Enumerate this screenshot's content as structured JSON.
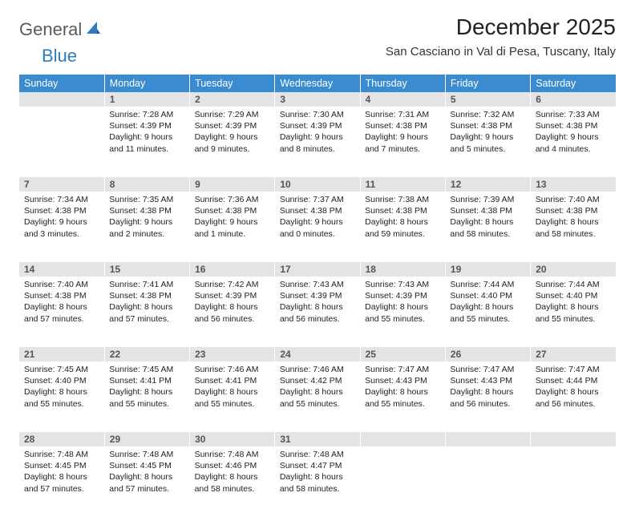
{
  "brand": {
    "general": "General",
    "blue": "Blue"
  },
  "title": "December 2025",
  "location": "San Casciano in Val di Pesa, Tuscany, Italy",
  "colors": {
    "header_bg": "#3a8bcf",
    "header_text": "#ffffff",
    "daynum_bg": "#e4e4e4",
    "daynum_text": "#555555",
    "body_text": "#222222",
    "brand_gray": "#5a5a5a",
    "brand_blue": "#2f7bbf",
    "page_bg": "#ffffff"
  },
  "typography": {
    "title_fontsize": 28,
    "location_fontsize": 15,
    "weekday_fontsize": 12.5,
    "daynum_fontsize": 12,
    "cell_fontsize": 10.5
  },
  "weekdays": [
    "Sunday",
    "Monday",
    "Tuesday",
    "Wednesday",
    "Thursday",
    "Friday",
    "Saturday"
  ],
  "weeks": [
    [
      {
        "n": "",
        "lines": []
      },
      {
        "n": "1",
        "lines": [
          "Sunrise: 7:28 AM",
          "Sunset: 4:39 PM",
          "Daylight: 9 hours",
          "and 11 minutes."
        ]
      },
      {
        "n": "2",
        "lines": [
          "Sunrise: 7:29 AM",
          "Sunset: 4:39 PM",
          "Daylight: 9 hours",
          "and 9 minutes."
        ]
      },
      {
        "n": "3",
        "lines": [
          "Sunrise: 7:30 AM",
          "Sunset: 4:39 PM",
          "Daylight: 9 hours",
          "and 8 minutes."
        ]
      },
      {
        "n": "4",
        "lines": [
          "Sunrise: 7:31 AM",
          "Sunset: 4:38 PM",
          "Daylight: 9 hours",
          "and 7 minutes."
        ]
      },
      {
        "n": "5",
        "lines": [
          "Sunrise: 7:32 AM",
          "Sunset: 4:38 PM",
          "Daylight: 9 hours",
          "and 5 minutes."
        ]
      },
      {
        "n": "6",
        "lines": [
          "Sunrise: 7:33 AM",
          "Sunset: 4:38 PM",
          "Daylight: 9 hours",
          "and 4 minutes."
        ]
      }
    ],
    [
      {
        "n": "7",
        "lines": [
          "Sunrise: 7:34 AM",
          "Sunset: 4:38 PM",
          "Daylight: 9 hours",
          "and 3 minutes."
        ]
      },
      {
        "n": "8",
        "lines": [
          "Sunrise: 7:35 AM",
          "Sunset: 4:38 PM",
          "Daylight: 9 hours",
          "and 2 minutes."
        ]
      },
      {
        "n": "9",
        "lines": [
          "Sunrise: 7:36 AM",
          "Sunset: 4:38 PM",
          "Daylight: 9 hours",
          "and 1 minute."
        ]
      },
      {
        "n": "10",
        "lines": [
          "Sunrise: 7:37 AM",
          "Sunset: 4:38 PM",
          "Daylight: 9 hours",
          "and 0 minutes."
        ]
      },
      {
        "n": "11",
        "lines": [
          "Sunrise: 7:38 AM",
          "Sunset: 4:38 PM",
          "Daylight: 8 hours",
          "and 59 minutes."
        ]
      },
      {
        "n": "12",
        "lines": [
          "Sunrise: 7:39 AM",
          "Sunset: 4:38 PM",
          "Daylight: 8 hours",
          "and 58 minutes."
        ]
      },
      {
        "n": "13",
        "lines": [
          "Sunrise: 7:40 AM",
          "Sunset: 4:38 PM",
          "Daylight: 8 hours",
          "and 58 minutes."
        ]
      }
    ],
    [
      {
        "n": "14",
        "lines": [
          "Sunrise: 7:40 AM",
          "Sunset: 4:38 PM",
          "Daylight: 8 hours",
          "and 57 minutes."
        ]
      },
      {
        "n": "15",
        "lines": [
          "Sunrise: 7:41 AM",
          "Sunset: 4:38 PM",
          "Daylight: 8 hours",
          "and 57 minutes."
        ]
      },
      {
        "n": "16",
        "lines": [
          "Sunrise: 7:42 AM",
          "Sunset: 4:39 PM",
          "Daylight: 8 hours",
          "and 56 minutes."
        ]
      },
      {
        "n": "17",
        "lines": [
          "Sunrise: 7:43 AM",
          "Sunset: 4:39 PM",
          "Daylight: 8 hours",
          "and 56 minutes."
        ]
      },
      {
        "n": "18",
        "lines": [
          "Sunrise: 7:43 AM",
          "Sunset: 4:39 PM",
          "Daylight: 8 hours",
          "and 55 minutes."
        ]
      },
      {
        "n": "19",
        "lines": [
          "Sunrise: 7:44 AM",
          "Sunset: 4:40 PM",
          "Daylight: 8 hours",
          "and 55 minutes."
        ]
      },
      {
        "n": "20",
        "lines": [
          "Sunrise: 7:44 AM",
          "Sunset: 4:40 PM",
          "Daylight: 8 hours",
          "and 55 minutes."
        ]
      }
    ],
    [
      {
        "n": "21",
        "lines": [
          "Sunrise: 7:45 AM",
          "Sunset: 4:40 PM",
          "Daylight: 8 hours",
          "and 55 minutes."
        ]
      },
      {
        "n": "22",
        "lines": [
          "Sunrise: 7:45 AM",
          "Sunset: 4:41 PM",
          "Daylight: 8 hours",
          "and 55 minutes."
        ]
      },
      {
        "n": "23",
        "lines": [
          "Sunrise: 7:46 AM",
          "Sunset: 4:41 PM",
          "Daylight: 8 hours",
          "and 55 minutes."
        ]
      },
      {
        "n": "24",
        "lines": [
          "Sunrise: 7:46 AM",
          "Sunset: 4:42 PM",
          "Daylight: 8 hours",
          "and 55 minutes."
        ]
      },
      {
        "n": "25",
        "lines": [
          "Sunrise: 7:47 AM",
          "Sunset: 4:43 PM",
          "Daylight: 8 hours",
          "and 55 minutes."
        ]
      },
      {
        "n": "26",
        "lines": [
          "Sunrise: 7:47 AM",
          "Sunset: 4:43 PM",
          "Daylight: 8 hours",
          "and 56 minutes."
        ]
      },
      {
        "n": "27",
        "lines": [
          "Sunrise: 7:47 AM",
          "Sunset: 4:44 PM",
          "Daylight: 8 hours",
          "and 56 minutes."
        ]
      }
    ],
    [
      {
        "n": "28",
        "lines": [
          "Sunrise: 7:48 AM",
          "Sunset: 4:45 PM",
          "Daylight: 8 hours",
          "and 57 minutes."
        ]
      },
      {
        "n": "29",
        "lines": [
          "Sunrise: 7:48 AM",
          "Sunset: 4:45 PM",
          "Daylight: 8 hours",
          "and 57 minutes."
        ]
      },
      {
        "n": "30",
        "lines": [
          "Sunrise: 7:48 AM",
          "Sunset: 4:46 PM",
          "Daylight: 8 hours",
          "and 58 minutes."
        ]
      },
      {
        "n": "31",
        "lines": [
          "Sunrise: 7:48 AM",
          "Sunset: 4:47 PM",
          "Daylight: 8 hours",
          "and 58 minutes."
        ]
      },
      {
        "n": "",
        "lines": []
      },
      {
        "n": "",
        "lines": []
      },
      {
        "n": "",
        "lines": []
      }
    ]
  ]
}
